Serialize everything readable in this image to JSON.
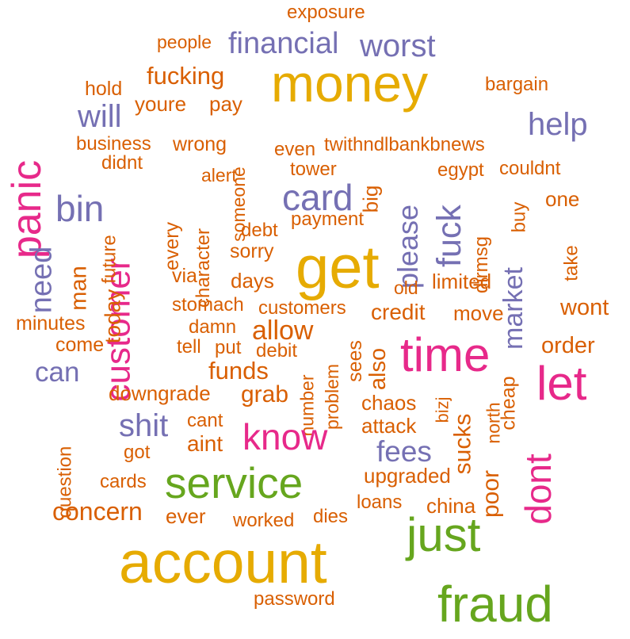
{
  "palette": {
    "orange": "#D95F02",
    "gold": "#E6AB02",
    "purple": "#7570B3",
    "pink": "#E7298A",
    "green": "#66A61E"
  },
  "words": [
    {
      "text": "exposure",
      "color": "#D95F02"
    },
    {
      "text": "people",
      "color": "#D95F02"
    },
    {
      "text": "financial",
      "color": "#7570B3"
    },
    {
      "text": "worst",
      "color": "#7570B3"
    },
    {
      "text": "money",
      "color": "#E6AB02"
    },
    {
      "text": "fucking",
      "color": "#D95F02"
    },
    {
      "text": "hold",
      "color": "#D95F02"
    },
    {
      "text": "bargain",
      "color": "#D95F02"
    },
    {
      "text": "youre",
      "color": "#D95F02"
    },
    {
      "text": "pay",
      "color": "#D95F02"
    },
    {
      "text": "will",
      "color": "#7570B3"
    },
    {
      "text": "help",
      "color": "#7570B3"
    },
    {
      "text": "panic",
      "color": "#E7298A"
    },
    {
      "text": "business",
      "color": "#D95F02"
    },
    {
      "text": "wrong",
      "color": "#D95F02"
    },
    {
      "text": "someone",
      "color": "#D95F02"
    },
    {
      "text": "even",
      "color": "#D95F02"
    },
    {
      "text": "twithndlbankbnews",
      "color": "#D95F02"
    },
    {
      "text": "didnt",
      "color": "#D95F02"
    },
    {
      "text": "alert",
      "color": "#D95F02"
    },
    {
      "text": "tower",
      "color": "#D95F02"
    },
    {
      "text": "egypt",
      "color": "#D95F02"
    },
    {
      "text": "couldnt",
      "color": "#D95F02"
    },
    {
      "text": "bin",
      "color": "#7570B3"
    },
    {
      "text": "card",
      "color": "#7570B3"
    },
    {
      "text": "big",
      "color": "#D95F02"
    },
    {
      "text": "please",
      "color": "#7570B3"
    },
    {
      "text": "fuck",
      "color": "#7570B3"
    },
    {
      "text": "buy",
      "color": "#D95F02"
    },
    {
      "text": "one",
      "color": "#D95F02"
    },
    {
      "text": "customer",
      "color": "#E7298A"
    },
    {
      "text": "every",
      "color": "#D95F02"
    },
    {
      "text": "character",
      "color": "#D95F02"
    },
    {
      "text": "payment",
      "color": "#D95F02"
    },
    {
      "text": "debt",
      "color": "#D95F02"
    },
    {
      "text": "need",
      "color": "#7570B3"
    },
    {
      "text": "man",
      "color": "#D95F02"
    },
    {
      "text": "future",
      "color": "#D95F02"
    },
    {
      "text": "today",
      "color": "#D95F02"
    },
    {
      "text": "sorry",
      "color": "#D95F02"
    },
    {
      "text": "get",
      "color": "#E6AB02"
    },
    {
      "text": "market",
      "color": "#7570B3"
    },
    {
      "text": "dirmsg",
      "color": "#D95F02"
    },
    {
      "text": "take",
      "color": "#D95F02"
    },
    {
      "text": "via",
      "color": "#D95F02"
    },
    {
      "text": "days",
      "color": "#D95F02"
    },
    {
      "text": "old",
      "color": "#D95F02"
    },
    {
      "text": "limited",
      "color": "#D95F02"
    },
    {
      "text": "stomach",
      "color": "#D95F02"
    },
    {
      "text": "customers",
      "color": "#D95F02"
    },
    {
      "text": "credit",
      "color": "#D95F02"
    },
    {
      "text": "move",
      "color": "#D95F02"
    },
    {
      "text": "wont",
      "color": "#D95F02"
    },
    {
      "text": "minutes",
      "color": "#D95F02"
    },
    {
      "text": "damn",
      "color": "#D95F02"
    },
    {
      "text": "allow",
      "color": "#D95F02"
    },
    {
      "text": "come",
      "color": "#D95F02"
    },
    {
      "text": "tell",
      "color": "#D95F02"
    },
    {
      "text": "put",
      "color": "#D95F02"
    },
    {
      "text": "debit",
      "color": "#D95F02"
    },
    {
      "text": "number",
      "color": "#D95F02"
    },
    {
      "text": "problem",
      "color": "#D95F02"
    },
    {
      "text": "sees",
      "color": "#D95F02"
    },
    {
      "text": "also",
      "color": "#D95F02"
    },
    {
      "text": "time",
      "color": "#E7298A"
    },
    {
      "text": "order",
      "color": "#D95F02"
    },
    {
      "text": "can",
      "color": "#7570B3"
    },
    {
      "text": "funds",
      "color": "#D95F02"
    },
    {
      "text": "cheap",
      "color": "#D95F02"
    },
    {
      "text": "let",
      "color": "#E7298A"
    },
    {
      "text": "downgrade",
      "color": "#D95F02"
    },
    {
      "text": "grab",
      "color": "#D95F02"
    },
    {
      "text": "chaos",
      "color": "#D95F02"
    },
    {
      "text": "north",
      "color": "#D95F02"
    },
    {
      "text": "bizj",
      "color": "#D95F02"
    },
    {
      "text": "sucks",
      "color": "#D95F02"
    },
    {
      "text": "shit",
      "color": "#7570B3"
    },
    {
      "text": "cant",
      "color": "#D95F02"
    },
    {
      "text": "attack",
      "color": "#D95F02"
    },
    {
      "text": "question",
      "color": "#D95F02"
    },
    {
      "text": "aint",
      "color": "#D95F02"
    },
    {
      "text": "know",
      "color": "#E7298A"
    },
    {
      "text": "dont",
      "color": "#E7298A"
    },
    {
      "text": "got",
      "color": "#D95F02"
    },
    {
      "text": "fees",
      "color": "#7570B3"
    },
    {
      "text": "poor",
      "color": "#D95F02"
    },
    {
      "text": "cards",
      "color": "#D95F02"
    },
    {
      "text": "service",
      "color": "#66A61E"
    },
    {
      "text": "upgraded",
      "color": "#D95F02"
    },
    {
      "text": "loans",
      "color": "#D95F02"
    },
    {
      "text": "china",
      "color": "#D95F02"
    },
    {
      "text": "concern",
      "color": "#D95F02"
    },
    {
      "text": "ever",
      "color": "#D95F02"
    },
    {
      "text": "worked",
      "color": "#D95F02"
    },
    {
      "text": "dies",
      "color": "#D95F02"
    },
    {
      "text": "just",
      "color": "#66A61E"
    },
    {
      "text": "account",
      "color": "#E6AB02"
    },
    {
      "text": "password",
      "color": "#D95F02"
    },
    {
      "text": "fraud",
      "color": "#66A61E"
    }
  ]
}
